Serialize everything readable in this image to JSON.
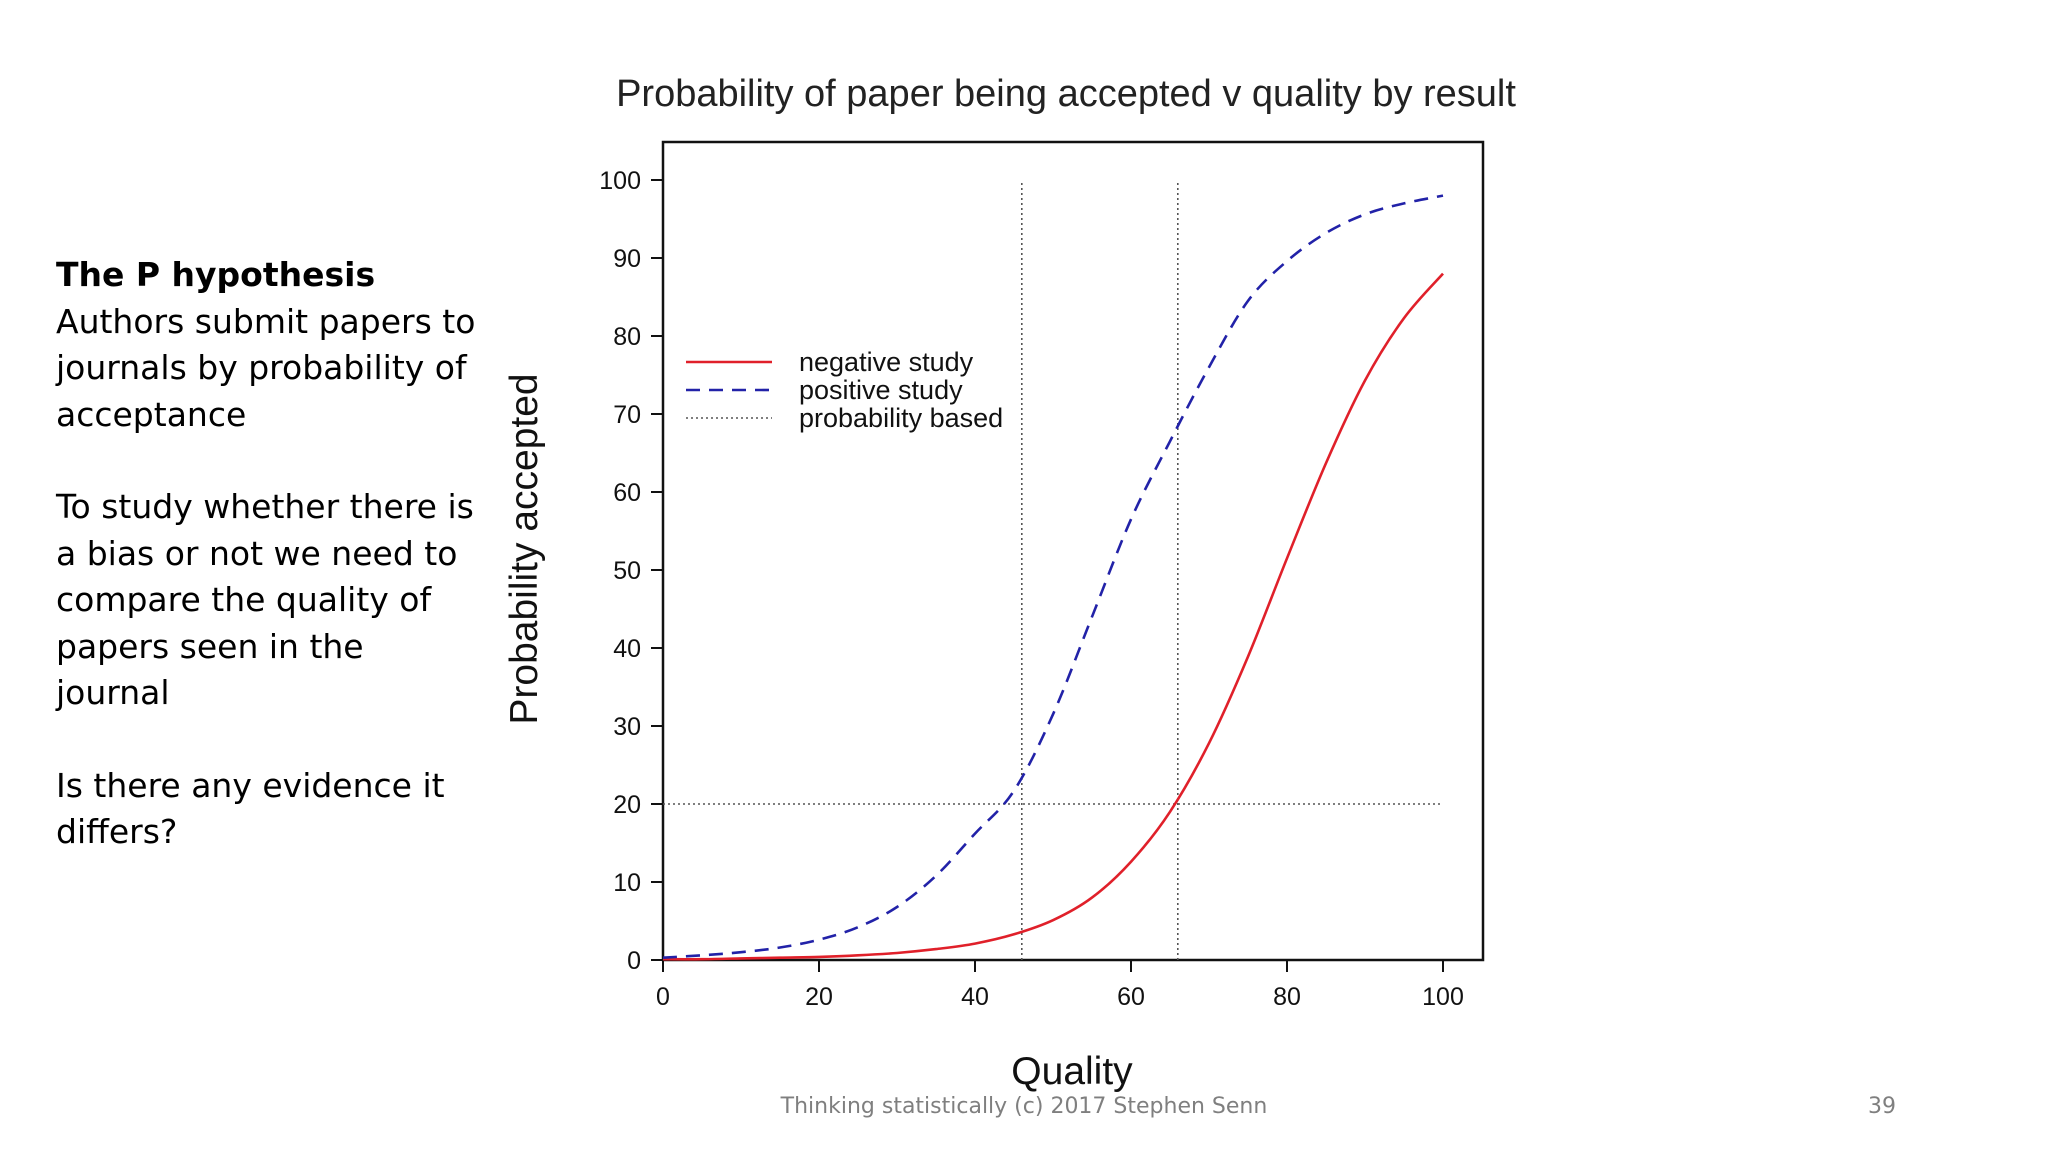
{
  "slide": {
    "heading": "The P hypothesis",
    "paragraph1": "Authors submit papers to journals by probability of acceptance",
    "paragraph2": "To study whether there is a bias or not we need to compare the quality of papers seen in the journal",
    "paragraph3": "Is there any evidence it differs?",
    "footer": "Thinking statistically (c) 2017 Stephen Senn",
    "page_number": "39"
  },
  "chart_data": {
    "type": "line",
    "title": "Probability of paper being accepted v quality by result",
    "xlabel": "Quality",
    "ylabel": "Probability accepted",
    "xlim": [
      0,
      100
    ],
    "ylim": [
      0,
      100
    ],
    "xticks": [
      0,
      20,
      40,
      60,
      80,
      100
    ],
    "yticks": [
      0,
      10,
      20,
      30,
      40,
      50,
      60,
      70,
      80,
      90,
      100
    ],
    "grid": false,
    "legend_position": "upper-left",
    "x": [
      0,
      5,
      10,
      15,
      20,
      25,
      30,
      35,
      40,
      45,
      50,
      55,
      60,
      65,
      70,
      75,
      80,
      85,
      90,
      95,
      100
    ],
    "series": [
      {
        "name": "negative study",
        "color": "#e0202a",
        "style": "solid",
        "values": [
          0.1,
          0.1,
          0.2,
          0.3,
          0.4,
          0.6,
          0.9,
          1.4,
          2.1,
          3.3,
          5.1,
          8.0,
          12.6,
          19.0,
          27.8,
          38.9,
          51.5,
          63.7,
          74.3,
          82.3,
          88.0
        ]
      },
      {
        "name": "positive study",
        "color": "#2222a8",
        "style": "dashed",
        "values": [
          0.3,
          0.6,
          1.0,
          1.6,
          2.6,
          4.2,
          6.8,
          10.8,
          16.2,
          21.7,
          31.5,
          44.0,
          56.5,
          66.5,
          76.0,
          84.5,
          89.6,
          93.2,
          95.6,
          97.0,
          98.0
        ]
      }
    ],
    "reference_lines": {
      "name": "probability based",
      "color": "#555555",
      "style": "dotted",
      "horizontal_y": 20,
      "vertical_x": [
        46,
        66
      ]
    }
  }
}
